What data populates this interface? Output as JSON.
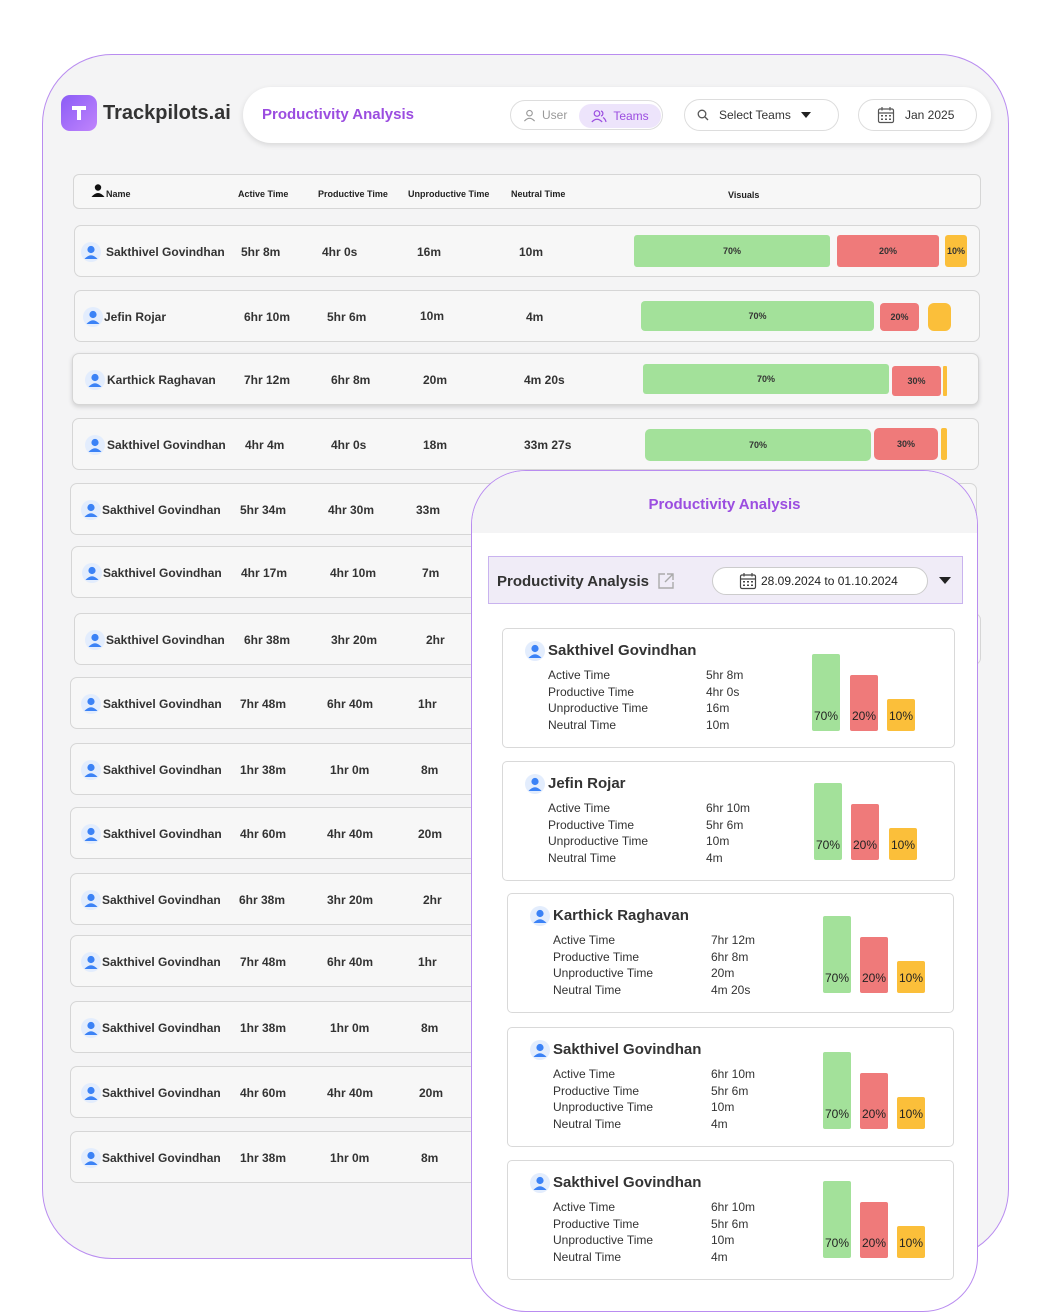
{
  "app": {
    "name": "Trackpilots.ai"
  },
  "topbar": {
    "title": "Productivity Analysis",
    "toggle_user": "User",
    "toggle_teams": "Teams",
    "select_teams": "Select Teams",
    "date": "Jan 2025"
  },
  "table": {
    "headers": {
      "name": "Name",
      "active": "Active Time",
      "productive": "Productive Time",
      "unproductive": "Unproductive Time",
      "neutral": "Neutral Time",
      "visuals": "Visuals"
    },
    "rows": [
      {
        "name": "Sakthivel Govindhan",
        "active": "5hr 8m",
        "productive": "4hr 0s",
        "unproductive": "16m",
        "neutral": "10m",
        "bars": [
          "70%",
          "20%",
          "10%"
        ]
      },
      {
        "name": "Jefin Rojar",
        "active": "6hr 10m",
        "productive": "5hr 6m",
        "unproductive": "10m",
        "neutral": "4m",
        "bars": [
          "70%",
          "20%",
          ""
        ]
      },
      {
        "name": "Karthick Raghavan",
        "active": "7hr 12m",
        "productive": "6hr 8m",
        "unproductive": "20m",
        "neutral": "4m 20s",
        "bars": [
          "70%",
          "30%",
          ""
        ]
      },
      {
        "name": "Sakthivel Govindhan",
        "active": "4hr 4m",
        "productive": "4hr 0s",
        "unproductive": "18m",
        "neutral": "33m 27s",
        "bars": [
          "70%",
          "30%",
          ""
        ]
      },
      {
        "name": "Sakthivel Govindhan",
        "active": "5hr 34m",
        "productive": "4hr 30m",
        "unproductive": "33m"
      },
      {
        "name": "Sakthivel Govindhan",
        "active": "4hr 17m",
        "productive": "4hr 10m",
        "unproductive": "7m"
      },
      {
        "name": "Sakthivel Govindhan",
        "active": "6hr 38m",
        "productive": "3hr 20m",
        "unproductive": "2hr"
      },
      {
        "name": "Sakthivel Govindhan",
        "active": "7hr 48m",
        "productive": "6hr 40m",
        "unproductive": "1hr"
      },
      {
        "name": "Sakthivel Govindhan",
        "active": "1hr 38m",
        "productive": "1hr 0m",
        "unproductive": "8m"
      },
      {
        "name": "Sakthivel Govindhan",
        "active": "4hr 60m",
        "productive": "4hr 40m",
        "unproductive": "20m"
      },
      {
        "name": "Sakthivel Govindhan",
        "active": "6hr 38m",
        "productive": "3hr 20m",
        "unproductive": "2hr"
      },
      {
        "name": "Sakthivel Govindhan",
        "active": "7hr 48m",
        "productive": "6hr 40m",
        "unproductive": "1hr"
      },
      {
        "name": "Sakthivel Govindhan",
        "active": "1hr 38m",
        "productive": "1hr 0m",
        "unproductive": "8m"
      },
      {
        "name": "Sakthivel Govindhan",
        "active": "4hr 60m",
        "productive": "4hr 40m",
        "unproductive": "20m"
      },
      {
        "name": "Sakthivel Govindhan",
        "active": "1hr 38m",
        "productive": "1hr 0m",
        "unproductive": "8m"
      }
    ]
  },
  "overlay": {
    "title": "Productivity Analysis",
    "panel_label": "Productivity Analysis",
    "date_range": "28.09.2024 to 01.10.2024",
    "metric_labels": [
      "Active Time",
      "Productive Time",
      "Unproductive Time",
      "Neutral Time"
    ],
    "cards": [
      {
        "name": "Sakthivel Govindhan",
        "values": [
          "5hr 8m",
          "4hr 0s",
          "16m",
          "10m"
        ],
        "bars": [
          "70%",
          "20%",
          "10%"
        ]
      },
      {
        "name": "Jefin Rojar",
        "values": [
          "6hr 10m",
          "5hr 6m",
          "10m",
          "4m"
        ],
        "bars": [
          "70%",
          "20%",
          "10%"
        ]
      },
      {
        "name": "Karthick Raghavan",
        "values": [
          "7hr 12m",
          "6hr 8m",
          "20m",
          "4m 20s"
        ],
        "bars": [
          "70%",
          "20%",
          "10%"
        ]
      },
      {
        "name": "Sakthivel Govindhan",
        "values": [
          "6hr 10m",
          "5hr 6m",
          "10m",
          "4m"
        ],
        "bars": [
          "70%",
          "20%",
          "10%"
        ]
      },
      {
        "name": "Sakthivel Govindhan",
        "values": [
          "6hr 10m",
          "5hr 6m",
          "10m",
          "4m"
        ],
        "bars": [
          "70%",
          "20%",
          "10%"
        ]
      }
    ]
  },
  "colors": {
    "accent": "#9b4de0",
    "productive": "#a3e19a",
    "unproductive": "#ef7a7a",
    "neutral": "#fbbf3a",
    "avatar": "#3b82f6"
  }
}
